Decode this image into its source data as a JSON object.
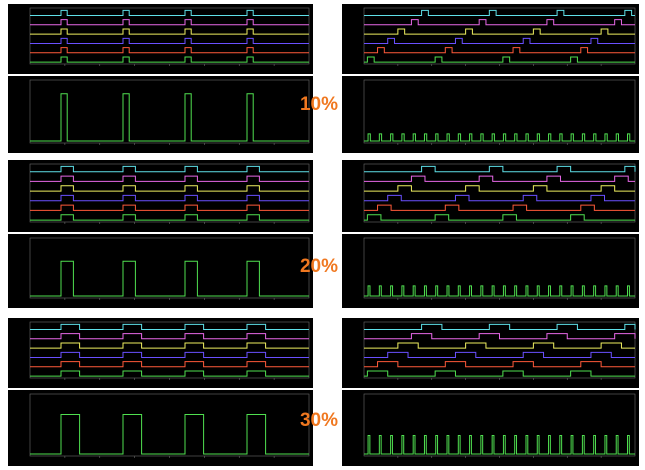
{
  "colors": {
    "background": "#000000",
    "axis": "#6a6a6a",
    "grid": "#2a2a2a",
    "percent_label": "#f07820",
    "series": [
      "#5fe0e8",
      "#e868e8",
      "#f0f060",
      "#6a50ff",
      "#ff5a3a",
      "#50e050"
    ]
  },
  "chart_data": [
    {
      "type": "line",
      "title": "",
      "duty_label": "10%",
      "phases_left": {
        "series": [
          {
            "duty": 0.1,
            "pulse_starts": [
              1.0,
              3.0,
              5.0,
              7.0
            ]
          },
          {
            "duty": 0.1,
            "pulse_starts": [
              1.0,
              3.0,
              5.0,
              7.0
            ]
          },
          {
            "duty": 0.1,
            "pulse_starts": [
              1.0,
              3.0,
              5.0,
              7.0
            ]
          },
          {
            "duty": 0.1,
            "pulse_starts": [
              1.0,
              3.0,
              5.0,
              7.0
            ]
          },
          {
            "duty": 0.1,
            "pulse_starts": [
              1.0,
              3.0,
              5.0,
              7.0
            ]
          },
          {
            "duty": 0.1,
            "pulse_starts": [
              1.0,
              3.0,
              5.0,
              7.0
            ]
          }
        ],
        "xlim": [
          0,
          9
        ]
      },
      "combined_left": {
        "pulse_starts": [
          1.0,
          3.0,
          5.0,
          7.0
        ],
        "pulse_width": 0.2,
        "level": 0.8,
        "xlim": [
          0,
          9
        ]
      },
      "phases_right": {
        "series": [
          {
            "pulse_starts": [
              1.7,
              3.7,
              5.7,
              7.7
            ]
          },
          {
            "pulse_starts": [
              1.4,
              3.4,
              5.4,
              7.4
            ]
          },
          {
            "pulse_starts": [
              1.0,
              3.0,
              5.0,
              7.0
            ]
          },
          {
            "pulse_starts": [
              0.7,
              2.7,
              4.7,
              6.7
            ]
          },
          {
            "pulse_starts": [
              0.4,
              2.4,
              4.4,
              6.4
            ]
          },
          {
            "pulse_starts": [
              0.1,
              2.1,
              4.1,
              6.1
            ]
          }
        ],
        "pulse_width": 0.2,
        "xlim": [
          0,
          8
        ]
      },
      "combined_right": {
        "period": 0.333,
        "pulse_width": 0.2,
        "level": 0.12,
        "xlim": [
          0,
          8
        ]
      }
    },
    {
      "type": "line",
      "title": "",
      "duty_label": "20%",
      "phases_left": {
        "pulse_starts": [
          1.0,
          3.0,
          5.0,
          7.0
        ],
        "pulse_width": 0.4,
        "xlim": [
          0,
          9
        ]
      },
      "combined_left": {
        "pulse_starts": [
          1.0,
          3.0,
          5.0,
          7.0
        ],
        "pulse_width": 0.4,
        "level": 0.62,
        "xlim": [
          0,
          9
        ]
      },
      "phases_right": {
        "series": [
          {
            "pulse_starts": [
              1.7,
              3.7,
              5.7,
              7.7
            ]
          },
          {
            "pulse_starts": [
              1.4,
              3.4,
              5.4,
              7.4
            ]
          },
          {
            "pulse_starts": [
              1.0,
              3.0,
              5.0,
              7.0
            ]
          },
          {
            "pulse_starts": [
              0.7,
              2.7,
              4.7,
              6.7
            ]
          },
          {
            "pulse_starts": [
              0.4,
              2.4,
              4.4,
              6.4
            ]
          },
          {
            "pulse_starts": [
              0.1,
              2.1,
              4.1,
              6.1
            ]
          }
        ],
        "pulse_width": 0.4,
        "xlim": [
          0,
          8
        ]
      },
      "combined_right": {
        "period": 0.333,
        "pulse_width": 0.17,
        "level": 0.18,
        "xlim": [
          0,
          8
        ]
      }
    },
    {
      "type": "line",
      "title": "",
      "duty_label": "30%",
      "phases_left": {
        "pulse_starts": [
          1.0,
          3.0,
          5.0,
          7.0
        ],
        "pulse_width": 0.6,
        "xlim": [
          0,
          9
        ]
      },
      "combined_left": {
        "pulse_starts": [
          1.0,
          3.0,
          5.0,
          7.0
        ],
        "pulse_width": 0.6,
        "level": 0.68,
        "xlim": [
          0,
          9
        ]
      },
      "phases_right": {
        "series": [
          {
            "pulse_starts": [
              1.7,
              3.7,
              5.7,
              7.7
            ]
          },
          {
            "pulse_starts": [
              1.4,
              3.4,
              5.4,
              7.4
            ]
          },
          {
            "pulse_starts": [
              1.0,
              3.0,
              5.0,
              7.0
            ]
          },
          {
            "pulse_starts": [
              0.7,
              2.7,
              4.7,
              6.7
            ]
          },
          {
            "pulse_starts": [
              0.4,
              2.4,
              4.4,
              6.4
            ]
          },
          {
            "pulse_starts": [
              0.1,
              2.1,
              4.1,
              6.1
            ]
          }
        ],
        "pulse_width": 0.6,
        "xlim": [
          0,
          8
        ]
      },
      "combined_right": {
        "period": 0.333,
        "pulse_width": 0.16,
        "level": 0.32,
        "xlim": [
          0,
          8
        ]
      }
    }
  ]
}
